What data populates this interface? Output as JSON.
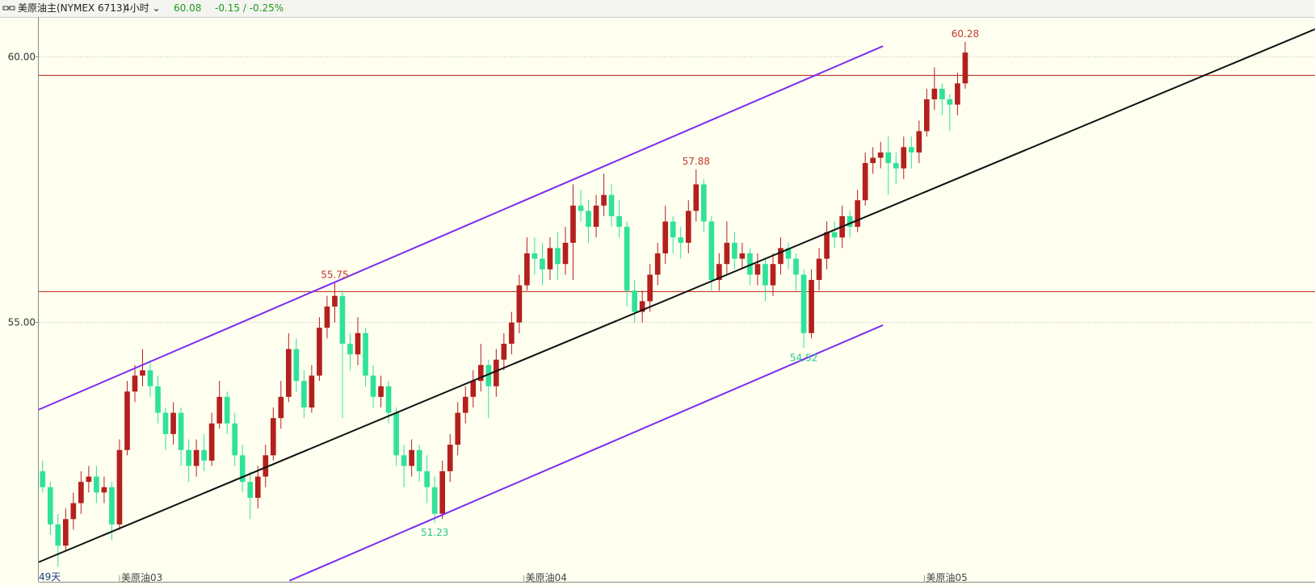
{
  "header": {
    "title": "美原油主(NYMEX 6713)",
    "period": "4小时",
    "price": "60.08",
    "change": "-0.15 / -0.25%"
  },
  "chart_data": {
    "type": "candlestick",
    "up_color": "#b3201d",
    "down_color": "#2fe29a",
    "grid": true,
    "xlim": [
      0,
      166
    ],
    "ylim": [
      50.12,
      60.75
    ],
    "yticks": [
      {
        "value": 55,
        "label": "55.00"
      },
      {
        "value": 60,
        "label": "60.00"
      }
    ],
    "xticks": [
      {
        "value": 10.5,
        "label": "美原油03"
      },
      {
        "value": 63.1,
        "label": "美原油04"
      },
      {
        "value": 115.2,
        "label": "美原油05"
      }
    ],
    "period_label": "49天",
    "hlines": [
      {
        "value": 59.65,
        "color": "#c0392b"
      },
      {
        "value": 55.58,
        "color": "#c0392b"
      }
    ],
    "lines": [
      {
        "color": "#7b2cf0",
        "x": [
          0,
          109.8
        ],
        "y": [
          53.36,
          60.2
        ]
      },
      {
        "color": "#7b2cf0",
        "x": [
          32.6,
          109.8
        ],
        "y": [
          50.14,
          54.95
        ]
      },
      {
        "color": "#111111",
        "x": [
          0,
          166
        ],
        "y": [
          50.49,
          60.52
        ]
      }
    ],
    "annotations": [
      {
        "index": 38,
        "value": 55.75,
        "position": "above",
        "color": "#c0392b"
      },
      {
        "index": 85,
        "value": 57.88,
        "position": "above",
        "color": "#c0392b"
      },
      {
        "index": 120,
        "value": 60.28,
        "position": "above",
        "color": "#c0392b"
      },
      {
        "index": 51,
        "value": 51.23,
        "position": "below",
        "color": "#27c98f"
      },
      {
        "index": 99,
        "value": 54.52,
        "position": "below",
        "color": "#27c98f"
      }
    ],
    "candles": [
      [
        52.2,
        52.4,
        51.8,
        51.9
      ],
      [
        51.9,
        52.0,
        51.0,
        51.2
      ],
      [
        51.2,
        51.4,
        50.4,
        50.8
      ],
      [
        50.8,
        51.5,
        50.7,
        51.3
      ],
      [
        51.3,
        51.8,
        51.1,
        51.6
      ],
      [
        51.6,
        52.2,
        51.4,
        52.0
      ],
      [
        52.0,
        52.3,
        51.8,
        52.1
      ],
      [
        52.1,
        52.3,
        51.6,
        51.8
      ],
      [
        51.8,
        52.1,
        51.6,
        51.9
      ],
      [
        51.9,
        52.0,
        50.9,
        51.2
      ],
      [
        51.2,
        52.8,
        51.1,
        52.6
      ],
      [
        52.6,
        53.9,
        52.5,
        53.7
      ],
      [
        53.7,
        54.2,
        53.5,
        54.0
      ],
      [
        54.0,
        54.5,
        53.8,
        54.1
      ],
      [
        54.1,
        54.3,
        53.6,
        53.8
      ],
      [
        53.8,
        54.0,
        53.1,
        53.3
      ],
      [
        53.3,
        53.4,
        52.6,
        52.9
      ],
      [
        52.9,
        53.5,
        52.7,
        53.3
      ],
      [
        53.3,
        53.4,
        52.3,
        52.6
      ],
      [
        52.6,
        52.8,
        52.0,
        52.3
      ],
      [
        52.3,
        52.8,
        52.1,
        52.6
      ],
      [
        52.6,
        52.9,
        52.2,
        52.4
      ],
      [
        52.4,
        53.3,
        52.3,
        53.1
      ],
      [
        53.1,
        53.9,
        53.0,
        53.6
      ],
      [
        53.6,
        53.7,
        52.9,
        53.1
      ],
      [
        53.1,
        53.3,
        52.3,
        52.5
      ],
      [
        52.5,
        52.7,
        51.8,
        52.0
      ],
      [
        52.0,
        52.2,
        51.3,
        51.7
      ],
      [
        51.7,
        52.3,
        51.5,
        52.1
      ],
      [
        52.1,
        52.7,
        51.9,
        52.5
      ],
      [
        52.5,
        53.4,
        52.4,
        53.2
      ],
      [
        53.2,
        53.9,
        53.0,
        53.6
      ],
      [
        53.6,
        54.8,
        53.5,
        54.5
      ],
      [
        54.5,
        54.7,
        53.7,
        53.9
      ],
      [
        53.9,
        54.1,
        53.2,
        53.4
      ],
      [
        53.4,
        54.2,
        53.3,
        54.0
      ],
      [
        54.0,
        55.1,
        53.9,
        54.9
      ],
      [
        54.9,
        55.5,
        54.7,
        55.3
      ],
      [
        55.3,
        55.75,
        55.0,
        55.5
      ],
      [
        55.5,
        55.6,
        53.2,
        54.6
      ],
      [
        54.6,
        54.8,
        54.1,
        54.4
      ],
      [
        54.4,
        55.1,
        54.2,
        54.8
      ],
      [
        54.8,
        54.9,
        53.8,
        54.0
      ],
      [
        54.0,
        54.2,
        53.4,
        53.6
      ],
      [
        53.6,
        54.0,
        53.4,
        53.8
      ],
      [
        53.8,
        53.9,
        53.1,
        53.3
      ],
      [
        53.3,
        53.4,
        52.3,
        52.5
      ],
      [
        52.5,
        52.7,
        51.9,
        52.3
      ],
      [
        52.3,
        52.8,
        52.1,
        52.6
      ],
      [
        52.6,
        52.7,
        52.0,
        52.2
      ],
      [
        52.2,
        52.5,
        51.6,
        51.9
      ],
      [
        51.9,
        52.1,
        51.23,
        51.4
      ],
      [
        51.4,
        52.4,
        51.3,
        52.2
      ],
      [
        52.2,
        52.9,
        52.0,
        52.7
      ],
      [
        52.7,
        53.5,
        52.5,
        53.3
      ],
      [
        53.3,
        53.8,
        53.1,
        53.6
      ],
      [
        53.6,
        54.1,
        53.4,
        53.9
      ],
      [
        53.9,
        54.6,
        53.7,
        54.2
      ],
      [
        54.2,
        54.3,
        53.2,
        53.8
      ],
      [
        53.8,
        54.5,
        53.6,
        54.3
      ],
      [
        54.3,
        54.8,
        54.1,
        54.6
      ],
      [
        54.6,
        55.2,
        54.4,
        55.0
      ],
      [
        55.0,
        55.9,
        54.8,
        55.7
      ],
      [
        55.7,
        56.6,
        55.6,
        56.3
      ],
      [
        56.3,
        56.6,
        55.9,
        56.2
      ],
      [
        56.2,
        56.5,
        55.7,
        56.0
      ],
      [
        56.0,
        56.6,
        55.8,
        56.4
      ],
      [
        56.4,
        56.7,
        55.8,
        56.1
      ],
      [
        56.1,
        56.8,
        55.9,
        56.5
      ],
      [
        56.5,
        57.6,
        55.8,
        57.2
      ],
      [
        57.2,
        57.5,
        56.9,
        57.1
      ],
      [
        57.1,
        57.3,
        56.5,
        56.8
      ],
      [
        56.8,
        57.4,
        56.6,
        57.2
      ],
      [
        57.2,
        57.8,
        57.0,
        57.4
      ],
      [
        57.4,
        57.6,
        56.8,
        57.0
      ],
      [
        57.0,
        57.3,
        56.6,
        56.8
      ],
      [
        56.8,
        56.9,
        55.3,
        55.6
      ],
      [
        55.6,
        55.8,
        55.0,
        55.2
      ],
      [
        55.2,
        55.6,
        55.0,
        55.4
      ],
      [
        55.4,
        56.1,
        55.2,
        55.9
      ],
      [
        55.9,
        56.5,
        55.7,
        56.3
      ],
      [
        56.3,
        57.2,
        56.1,
        56.9
      ],
      [
        56.9,
        57.0,
        56.3,
        56.6
      ],
      [
        56.6,
        56.8,
        56.2,
        56.5
      ],
      [
        56.5,
        57.3,
        56.3,
        57.1
      ],
      [
        57.1,
        57.88,
        56.9,
        57.6
      ],
      [
        57.6,
        57.7,
        56.7,
        56.9
      ],
      [
        56.9,
        57.0,
        55.6,
        55.8
      ],
      [
        55.8,
        56.3,
        55.6,
        56.1
      ],
      [
        56.1,
        56.9,
        55.9,
        56.5
      ],
      [
        56.5,
        56.7,
        56.0,
        56.2
      ],
      [
        56.2,
        56.5,
        56.0,
        56.3
      ],
      [
        56.3,
        56.4,
        55.7,
        55.9
      ],
      [
        55.9,
        56.3,
        55.7,
        56.1
      ],
      [
        56.1,
        56.2,
        55.4,
        55.7
      ],
      [
        55.7,
        56.3,
        55.5,
        56.1
      ],
      [
        56.1,
        56.6,
        55.9,
        56.4
      ],
      [
        56.4,
        56.5,
        56.0,
        56.2
      ],
      [
        56.2,
        56.3,
        55.6,
        55.9
      ],
      [
        55.9,
        56.0,
        54.52,
        54.8
      ],
      [
        54.8,
        56.0,
        54.7,
        55.8
      ],
      [
        55.8,
        56.4,
        55.6,
        56.2
      ],
      [
        56.2,
        56.9,
        56.0,
        56.7
      ],
      [
        56.7,
        56.9,
        56.4,
        56.6
      ],
      [
        56.6,
        57.2,
        56.4,
        57.0
      ],
      [
        57.0,
        57.1,
        56.6,
        56.8
      ],
      [
        56.8,
        57.5,
        56.7,
        57.3
      ],
      [
        57.3,
        58.2,
        57.2,
        58.0
      ],
      [
        58.0,
        58.3,
        57.8,
        58.1
      ],
      [
        58.1,
        58.4,
        57.9,
        58.2
      ],
      [
        58.2,
        58.5,
        57.4,
        58.0
      ],
      [
        58.0,
        58.2,
        57.6,
        57.9
      ],
      [
        57.9,
        58.5,
        57.7,
        58.3
      ],
      [
        58.3,
        58.5,
        57.9,
        58.2
      ],
      [
        58.2,
        58.8,
        58.0,
        58.6
      ],
      [
        58.6,
        59.4,
        58.5,
        59.2
      ],
      [
        59.2,
        59.8,
        59.0,
        59.4
      ],
      [
        59.4,
        59.5,
        58.9,
        59.2
      ],
      [
        59.2,
        59.3,
        58.6,
        59.1
      ],
      [
        59.1,
        59.7,
        58.9,
        59.5
      ],
      [
        59.5,
        60.28,
        59.4,
        60.08
      ]
    ]
  }
}
